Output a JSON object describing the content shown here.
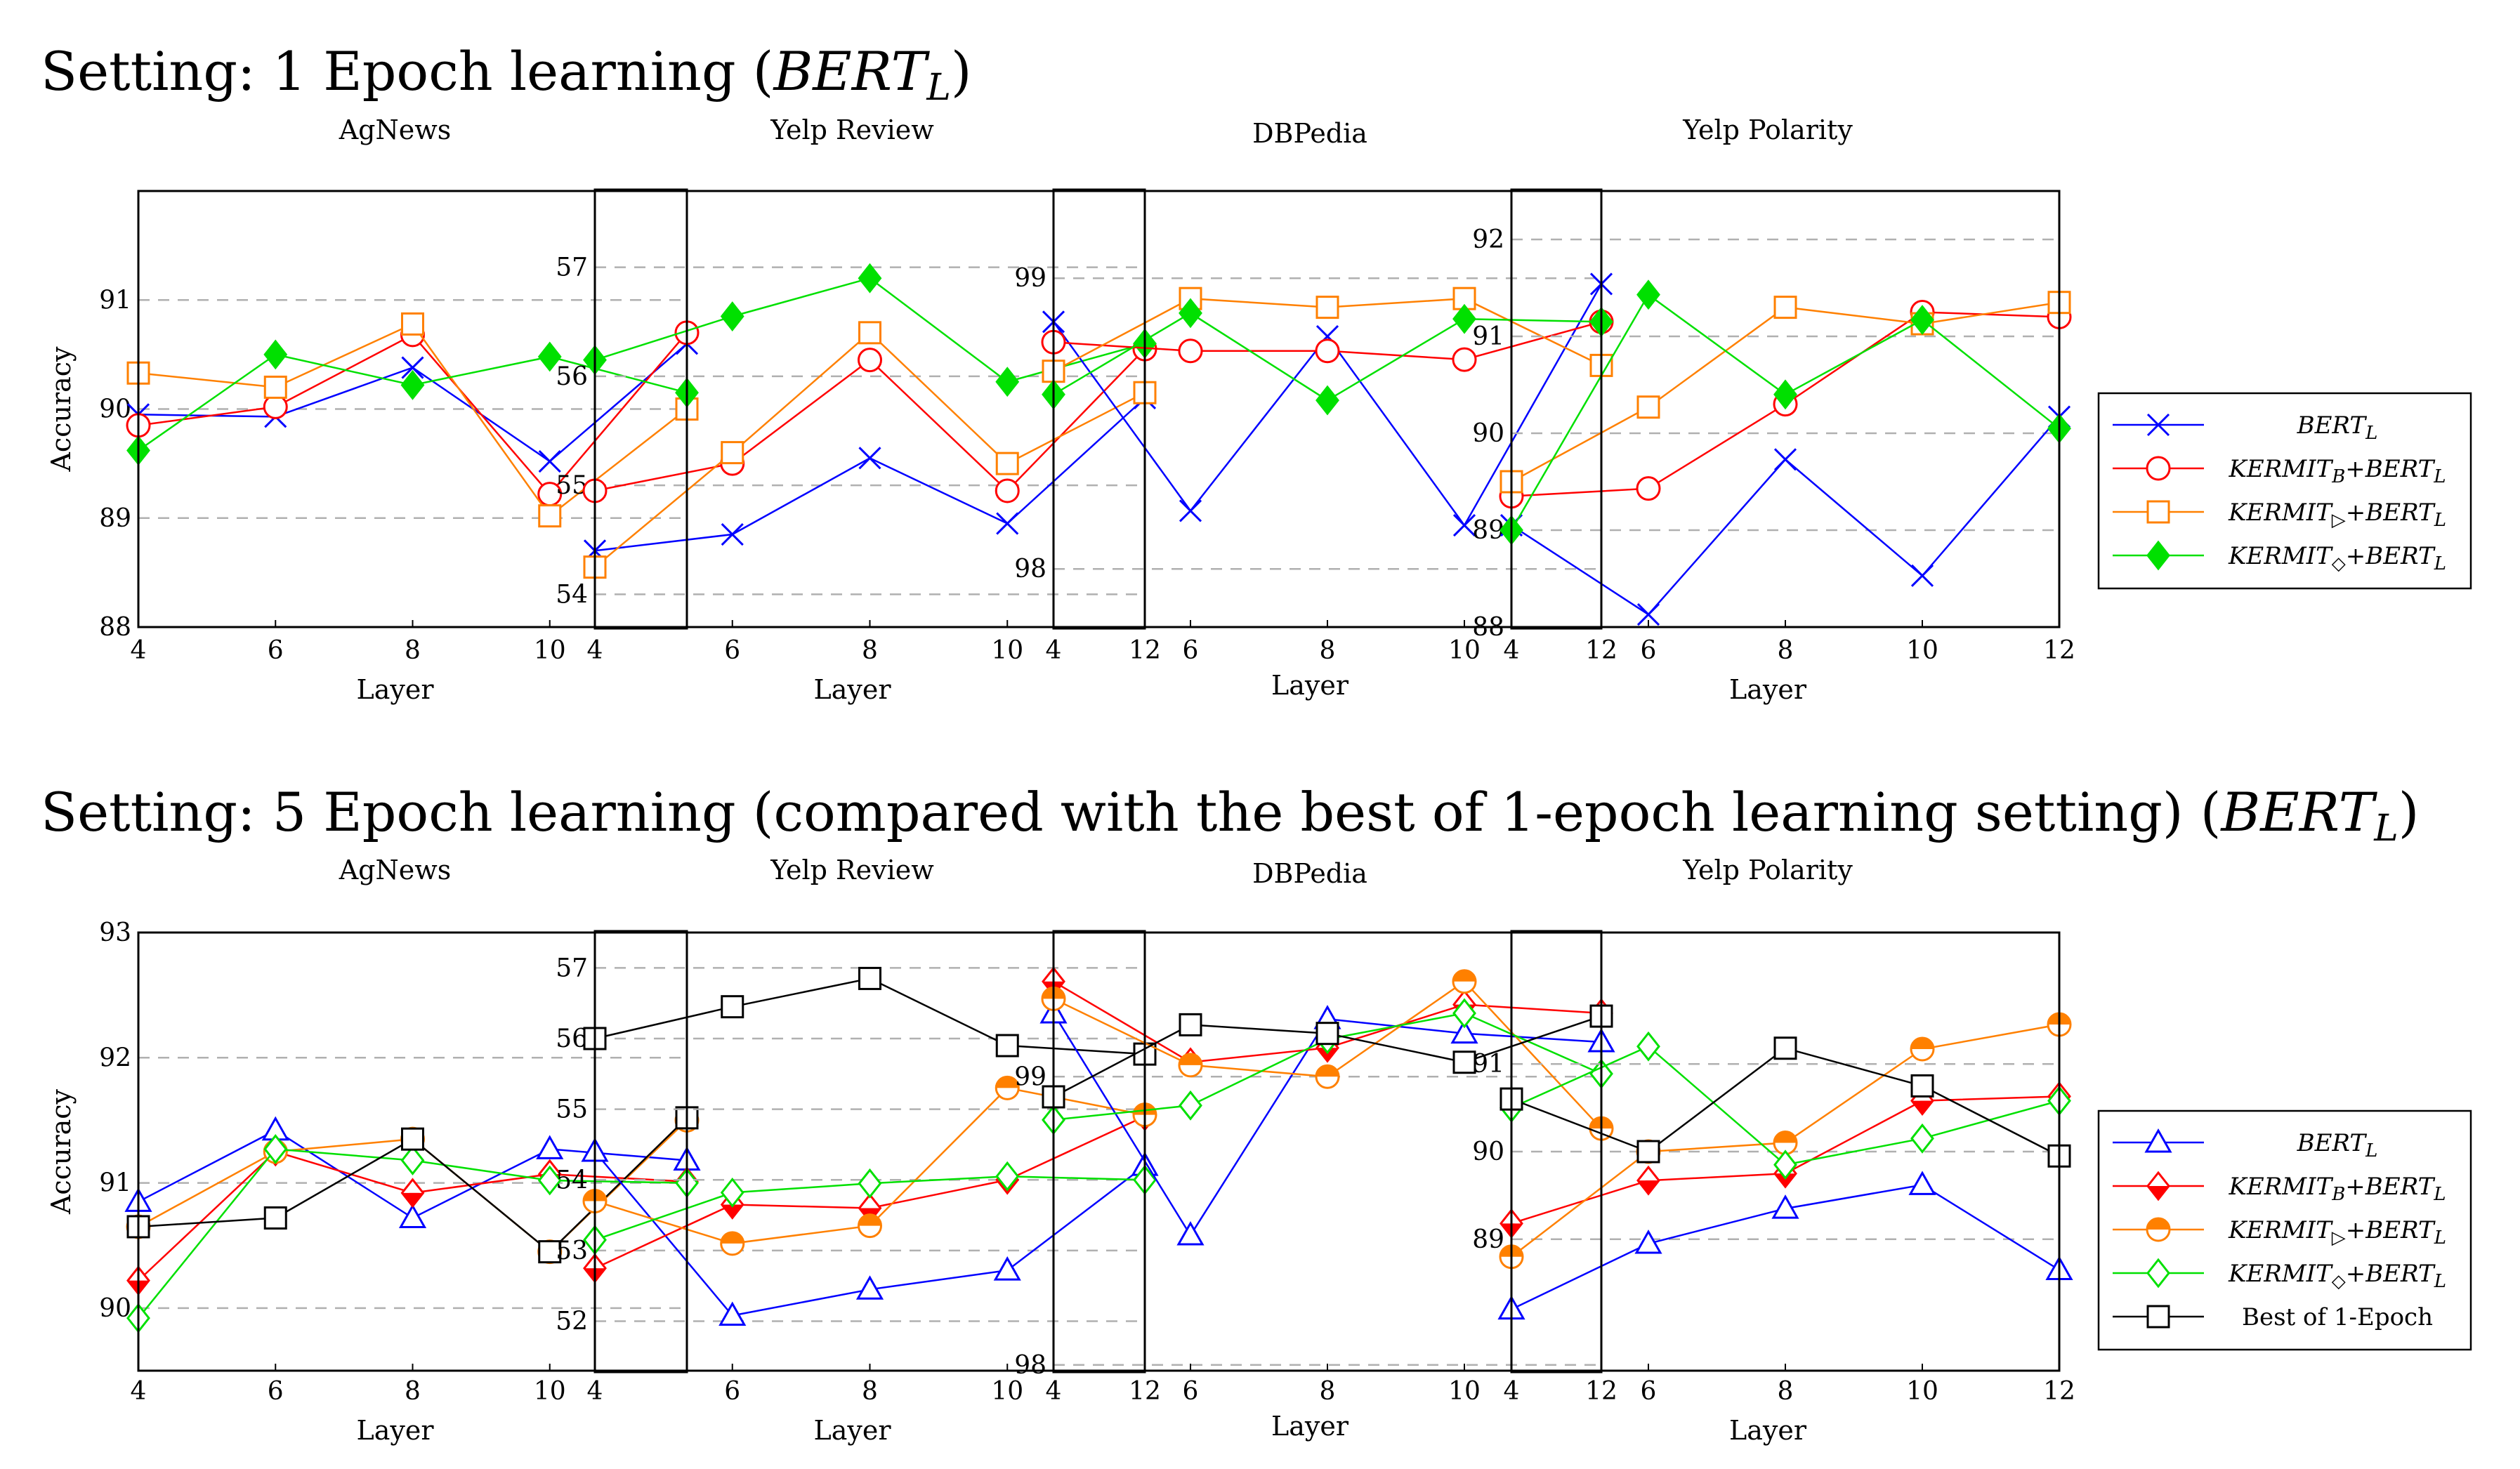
{
  "figure": {
    "rows": [
      {
        "title_prefix": "Setting: 1 Epoch learning (",
        "title_model": "BERT",
        "title_sub": "L",
        "title_suffix": ")"
      },
      {
        "title_prefix": "Setting: 5 Epoch learning (compared with the best of 1-epoch learning setting) (",
        "title_model": "BERT",
        "title_sub": "L",
        "title_suffix": ")"
      }
    ],
    "ylabel": "Accuracy",
    "xlabel": "Layer"
  },
  "legends": [
    [
      {
        "main": "BERT",
        "sub": "L",
        "rest": "",
        "color": "#0000ff",
        "marker": "x"
      },
      {
        "main": "KERMIT",
        "sub": "B",
        "rest": "+BERT",
        "sub2": "L",
        "color": "#ff0000",
        "marker": "circle"
      },
      {
        "main": "KERMIT",
        "sub": "▷",
        "rest": "+BERT",
        "sub2": "L",
        "color": "#ff8000",
        "marker": "square"
      },
      {
        "main": "KERMIT",
        "sub": "◇",
        "rest": "+BERT",
        "sub2": "L",
        "color": "#00e000",
        "marker": "diamond-filled"
      }
    ],
    [
      {
        "main": "BERT",
        "sub": "L",
        "rest": "",
        "color": "#0000ff",
        "marker": "triangle"
      },
      {
        "main": "KERMIT",
        "sub": "B",
        "rest": "+BERT",
        "sub2": "L",
        "color": "#ff0000",
        "marker": "diamond-half"
      },
      {
        "main": "KERMIT",
        "sub": "▷",
        "rest": "+BERT",
        "sub2": "L",
        "color": "#ff8000",
        "marker": "circle-half"
      },
      {
        "main": "KERMIT",
        "sub": "◇",
        "rest": "+BERT",
        "sub2": "L",
        "color": "#00e000",
        "marker": "diamond"
      },
      {
        "main": "Best of 1-Epoch",
        "sub": "",
        "rest": "",
        "color": "#000000",
        "marker": "square",
        "plain": true
      }
    ]
  ],
  "chart_data": [
    {
      "type": "line",
      "row": 0,
      "title": "AgNews",
      "xlabel": "Layer",
      "ylabel": "Accuracy",
      "x": [
        4,
        6,
        8,
        10,
        12
      ],
      "xticks": [
        4,
        6,
        8,
        10
      ],
      "ylim": [
        88,
        92
      ],
      "yticks": [
        88,
        89,
        90,
        91
      ],
      "series": [
        {
          "name": "BERT_L",
          "values": [
            89.95,
            89.93,
            90.38,
            89.52,
            90.6
          ]
        },
        {
          "name": "KERMIT_B+BERT_L",
          "values": [
            89.85,
            90.02,
            90.68,
            89.22,
            90.7
          ]
        },
        {
          "name": "KERMIT_▷+BERT_L",
          "values": [
            90.33,
            90.2,
            90.78,
            89.02,
            90.0
          ]
        },
        {
          "name": "KERMIT_◇+BERT_L",
          "values": [
            89.62,
            90.5,
            90.22,
            90.48,
            90.15
          ]
        }
      ]
    },
    {
      "type": "line",
      "row": 0,
      "title": "Yelp Review",
      "xlabel": "Layer",
      "ylabel": "",
      "x": [
        4,
        6,
        8,
        10,
        12
      ],
      "xticks": [
        4,
        6,
        8,
        10,
        12
      ],
      "ylim": [
        53.7,
        57.7
      ],
      "yticks": [
        54,
        55,
        56,
        57
      ],
      "series": [
        {
          "name": "BERT_L",
          "values": [
            54.4,
            54.55,
            55.25,
            54.65,
            55.8
          ]
        },
        {
          "name": "KERMIT_B+BERT_L",
          "values": [
            54.95,
            55.2,
            56.15,
            54.95,
            56.25
          ]
        },
        {
          "name": "KERMIT_▷+BERT_L",
          "values": [
            54.25,
            55.3,
            56.4,
            55.2,
            55.85
          ]
        },
        {
          "name": "KERMIT_◇+BERT_L",
          "values": [
            56.15,
            56.55,
            56.9,
            55.95,
            56.3
          ]
        }
      ]
    },
    {
      "type": "line",
      "row": 0,
      "title": "DBPedia",
      "xlabel": "Layer",
      "ylabel": "",
      "x": [
        4,
        6,
        8,
        10,
        12
      ],
      "xticks": [
        4,
        6,
        8,
        10,
        12
      ],
      "ylim": [
        97.8,
        99.3
      ],
      "yticks": [
        98,
        99
      ],
      "series": [
        {
          "name": "BERT_L",
          "values": [
            98.85,
            98.2,
            98.8,
            98.15,
            98.98
          ]
        },
        {
          "name": "KERMIT_B+BERT_L",
          "values": [
            98.78,
            98.75,
            98.75,
            98.72,
            98.85
          ]
        },
        {
          "name": "KERMIT_▷+BERT_L",
          "values": [
            98.68,
            98.93,
            98.9,
            98.93,
            98.7
          ]
        },
        {
          "name": "KERMIT_◇+BERT_L",
          "values": [
            98.6,
            98.88,
            98.58,
            98.86,
            98.85
          ]
        }
      ]
    },
    {
      "type": "line",
      "row": 0,
      "title": "Yelp Polarity",
      "xlabel": "Layer",
      "ylabel": "",
      "x": [
        4,
        6,
        8,
        10,
        12
      ],
      "xticks": [
        4,
        6,
        8,
        10,
        12
      ],
      "ylim": [
        88,
        92.5
      ],
      "yticks": [
        88,
        89,
        90,
        91,
        92
      ],
      "series": [
        {
          "name": "BERT_L",
          "values": [
            89.05,
            88.13,
            89.73,
            88.53,
            90.17
          ]
        },
        {
          "name": "KERMIT_B+BERT_L",
          "values": [
            89.35,
            89.43,
            90.3,
            91.25,
            91.2
          ]
        },
        {
          "name": "KERMIT_▷+BERT_L",
          "values": [
            89.5,
            90.27,
            91.3,
            91.13,
            91.35
          ]
        },
        {
          "name": "KERMIT_◇+BERT_L",
          "values": [
            89.0,
            91.43,
            90.4,
            91.17,
            90.05
          ]
        }
      ]
    },
    {
      "type": "line",
      "row": 1,
      "title": "AgNews",
      "xlabel": "Layer",
      "ylabel": "Accuracy",
      "x": [
        4,
        6,
        8,
        10,
        12
      ],
      "xticks": [
        4,
        6,
        8,
        10
      ],
      "ylim": [
        89.5,
        93
      ],
      "yticks": [
        90,
        91,
        92,
        93
      ],
      "series": [
        {
          "name": "BERT_L",
          "values": [
            90.85,
            91.42,
            90.72,
            91.27,
            91.18
          ]
        },
        {
          "name": "KERMIT_B+BERT_L",
          "values": [
            90.22,
            91.25,
            90.92,
            91.07,
            91.01
          ]
        },
        {
          "name": "KERMIT_▷+BERT_L",
          "values": [
            90.65,
            91.25,
            91.35,
            90.45,
            91.5
          ]
        },
        {
          "name": "KERMIT_◇+BERT_L",
          "values": [
            89.92,
            91.27,
            91.18,
            91.02,
            91.0
          ]
        },
        {
          "name": "Best of 1-Epoch",
          "values": [
            90.65,
            90.72,
            91.35,
            90.45,
            91.52
          ]
        }
      ]
    },
    {
      "type": "line",
      "row": 1,
      "title": "Yelp Review",
      "xlabel": "Layer",
      "ylabel": "",
      "x": [
        4,
        6,
        8,
        10,
        12
      ],
      "xticks": [
        4,
        6,
        8,
        10,
        12
      ],
      "ylim": [
        51.3,
        57.5
      ],
      "yticks": [
        52,
        53,
        54,
        55,
        56,
        57
      ],
      "series": [
        {
          "name": "BERT_L",
          "values": [
            54.4,
            52.08,
            52.45,
            52.72,
            54.2
          ]
        },
        {
          "name": "KERMIT_B+BERT_L",
          "values": [
            52.75,
            53.65,
            53.6,
            54.0,
            54.9
          ]
        },
        {
          "name": "KERMIT_▷+BERT_L",
          "values": [
            53.7,
            53.1,
            53.35,
            55.3,
            54.92
          ]
        },
        {
          "name": "KERMIT_◇+BERT_L",
          "values": [
            53.15,
            53.82,
            53.95,
            54.05,
            54.0
          ]
        },
        {
          "name": "Best of 1-Epoch",
          "values": [
            56.0,
            56.45,
            56.85,
            55.9,
            55.78
          ]
        }
      ]
    },
    {
      "type": "line",
      "row": 1,
      "title": "DBPedia",
      "xlabel": "Layer",
      "ylabel": "",
      "x": [
        4,
        6,
        8,
        10,
        12
      ],
      "xticks": [
        4,
        6,
        8,
        10,
        12
      ],
      "ylim": [
        97.98,
        99.5
      ],
      "yticks": [
        98,
        99
      ],
      "series": [
        {
          "name": "BERT_L",
          "values": [
            99.22,
            98.45,
            99.2,
            99.15,
            99.12
          ]
        },
        {
          "name": "KERMIT_B+BERT_L",
          "values": [
            99.33,
            99.05,
            99.1,
            99.25,
            99.22
          ]
        },
        {
          "name": "KERMIT_▷+BERT_L",
          "values": [
            99.27,
            99.04,
            99.0,
            99.33,
            98.82
          ]
        },
        {
          "name": "KERMIT_◇+BERT_L",
          "values": [
            98.85,
            98.9,
            99.13,
            99.22,
            99.01
          ]
        },
        {
          "name": "Best of 1-Epoch",
          "values": [
            98.93,
            99.18,
            99.15,
            99.05,
            99.21
          ]
        }
      ]
    },
    {
      "type": "line",
      "row": 1,
      "title": "Yelp Polarity",
      "xlabel": "Layer",
      "ylabel": "",
      "x": [
        4,
        6,
        8,
        10,
        12
      ],
      "xticks": [
        4,
        6,
        8,
        10,
        12
      ],
      "ylim": [
        87.5,
        92.5
      ],
      "yticks": [
        89,
        90,
        91
      ],
      "series": [
        {
          "name": "BERT_L",
          "values": [
            88.2,
            88.95,
            89.35,
            89.62,
            88.65
          ]
        },
        {
          "name": "KERMIT_B+BERT_L",
          "values": [
            89.18,
            89.67,
            89.75,
            90.58,
            90.63
          ]
        },
        {
          "name": "KERMIT_▷+BERT_L",
          "values": [
            88.8,
            90.0,
            90.1,
            91.17,
            91.45
          ]
        },
        {
          "name": "KERMIT_◇+BERT_L",
          "values": [
            90.5,
            91.2,
            89.85,
            90.15,
            90.58
          ]
        },
        {
          "name": "Best of 1-Epoch",
          "values": [
            90.6,
            90.0,
            91.18,
            90.75,
            89.95
          ]
        }
      ]
    }
  ]
}
